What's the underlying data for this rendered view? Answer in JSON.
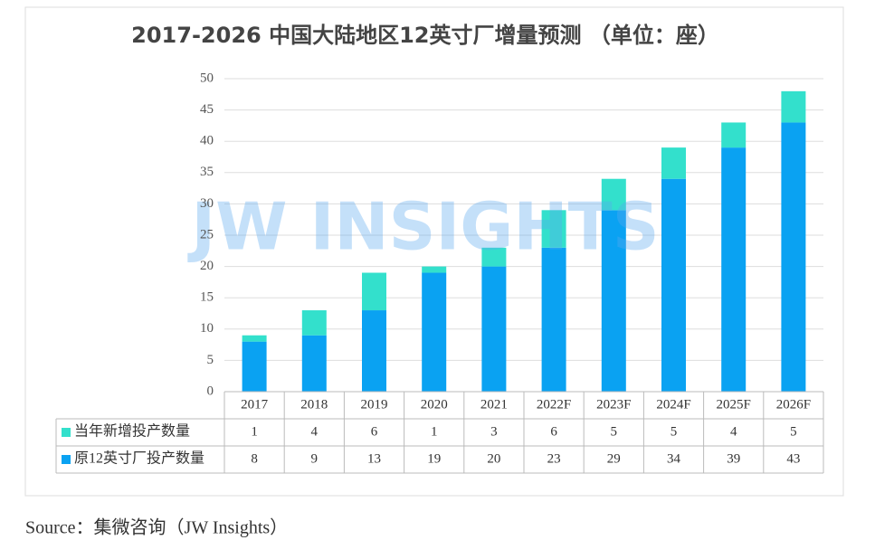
{
  "chart_data": {
    "type": "stacked-bar",
    "title": "2017-2026 中国大陆地区12英寸厂增量预测 （单位：座）",
    "watermark": "JW INSIGHTS",
    "source": "Source：集微咨询（JW Insights）",
    "categories": [
      "2017",
      "2018",
      "2019",
      "2020",
      "2021",
      "2022F",
      "2023F",
      "2024F",
      "2025F",
      "2026F"
    ],
    "series": [
      {
        "name": "当年新增投产数量",
        "color": "#33e0cc",
        "values": [
          1,
          4,
          6,
          1,
          3,
          6,
          5,
          5,
          4,
          5
        ]
      },
      {
        "name": "原12英寸厂投产数量",
        "color": "#0aa2f2",
        "values": [
          8,
          9,
          13,
          19,
          20,
          23,
          29,
          34,
          39,
          43
        ]
      }
    ],
    "ylim": [
      0,
      50
    ],
    "yticks": [
      0,
      5,
      10,
      15,
      20,
      25,
      30,
      35,
      40,
      45,
      50
    ],
    "grid": true
  }
}
